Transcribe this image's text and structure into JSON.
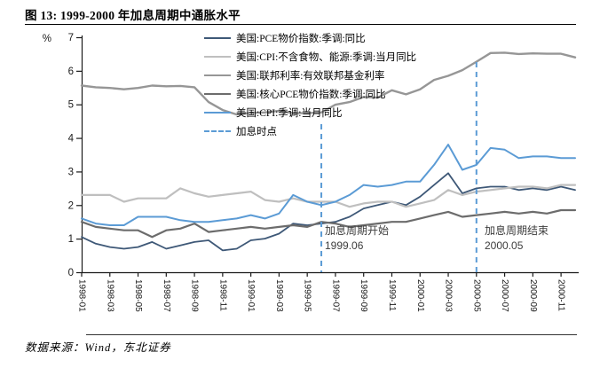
{
  "title": "图 13: 1999-2000 年加息周期中通胀水平",
  "footer": {
    "source_text": "数据来源：Wind，东北证券"
  },
  "chart_data": {
    "type": "line",
    "unit": "%",
    "ylim": [
      0,
      7
    ],
    "yticks": [
      0,
      1,
      2,
      3,
      4,
      5,
      6,
      7
    ],
    "grid": false,
    "legend_position": "top-center-overlay",
    "x_months": [
      "1998-01",
      "1998-02",
      "1998-03",
      "1998-04",
      "1998-05",
      "1998-06",
      "1998-07",
      "1998-08",
      "1998-09",
      "1998-10",
      "1998-11",
      "1998-12",
      "1999-01",
      "1999-02",
      "1999-03",
      "1999-04",
      "1999-05",
      "1999-06",
      "1999-07",
      "1999-08",
      "1999-09",
      "1999-10",
      "1999-11",
      "1999-12",
      "2000-01",
      "2000-02",
      "2000-03",
      "2000-04",
      "2000-05",
      "2000-06",
      "2000-07",
      "2000-08",
      "2000-09",
      "2000-10",
      "2000-11",
      "2000-12"
    ],
    "x_tick_labels": [
      "1998-01",
      "1998-03",
      "1998-05",
      "1998-07",
      "1998-09",
      "1998-11",
      "1999-01",
      "1999-03",
      "1999-05",
      "1999-07",
      "1999-09",
      "1999-11",
      "2000-01",
      "2000-03",
      "2000-05",
      "2000-07",
      "2000-09",
      "2000-11"
    ],
    "series": [
      {
        "id": "pce",
        "name": "美国:PCE物价指数:季调:同比",
        "color": "#3E5877",
        "width": 1.8,
        "values": [
          1.05,
          0.85,
          0.75,
          0.7,
          0.75,
          0.9,
          0.7,
          0.8,
          0.9,
          0.95,
          0.65,
          0.7,
          0.95,
          1.0,
          1.15,
          1.45,
          1.4,
          1.45,
          1.5,
          1.65,
          1.9,
          2.0,
          2.1,
          2.0,
          2.25,
          2.6,
          2.95,
          2.35,
          2.5,
          2.55,
          2.55,
          2.45,
          2.5,
          2.45,
          2.55,
          2.45
        ]
      },
      {
        "id": "core_cpi",
        "name": "美国:CPI:不含食物、能源:季调:当月同比",
        "color": "#BFBFBF",
        "width": 2.2,
        "values": [
          2.3,
          2.3,
          2.3,
          2.1,
          2.2,
          2.2,
          2.2,
          2.5,
          2.35,
          2.25,
          2.3,
          2.35,
          2.4,
          2.15,
          2.1,
          2.2,
          2.1,
          2.1,
          2.1,
          1.95,
          2.05,
          2.1,
          2.1,
          1.95,
          2.05,
          2.15,
          2.45,
          2.3,
          2.4,
          2.45,
          2.5,
          2.55,
          2.55,
          2.5,
          2.6,
          2.6
        ]
      },
      {
        "id": "fed_funds",
        "name": "美国:联邦利率:有效联邦基金利率",
        "color": "#969696",
        "width": 2.4,
        "values": [
          5.56,
          5.51,
          5.49,
          5.45,
          5.49,
          5.56,
          5.54,
          5.55,
          5.51,
          5.07,
          4.83,
          4.7,
          4.75,
          4.76,
          4.81,
          4.74,
          4.74,
          4.76,
          4.99,
          5.07,
          5.22,
          5.2,
          5.42,
          5.3,
          5.45,
          5.73,
          5.85,
          6.02,
          6.27,
          6.53,
          6.54,
          6.5,
          6.52,
          6.51,
          6.51,
          6.4
        ]
      },
      {
        "id": "core_pce",
        "name": "美国:核心PCE物价指数:季调:同比",
        "color": "#6C6C6C",
        "width": 2.2,
        "values": [
          1.5,
          1.35,
          1.3,
          1.25,
          1.25,
          1.05,
          1.25,
          1.3,
          1.45,
          1.2,
          1.25,
          1.3,
          1.35,
          1.3,
          1.35,
          1.4,
          1.35,
          1.5,
          1.45,
          1.35,
          1.4,
          1.45,
          1.5,
          1.5,
          1.6,
          1.7,
          1.8,
          1.65,
          1.7,
          1.75,
          1.8,
          1.75,
          1.8,
          1.75,
          1.85,
          1.85
        ]
      },
      {
        "id": "cpi",
        "name": "美国:CPI:季调:当月同比",
        "color": "#5B9BD5",
        "width": 2.0,
        "values": [
          1.6,
          1.45,
          1.4,
          1.4,
          1.65,
          1.65,
          1.65,
          1.55,
          1.5,
          1.5,
          1.55,
          1.6,
          1.7,
          1.6,
          1.75,
          2.3,
          2.1,
          2.0,
          2.1,
          2.3,
          2.6,
          2.55,
          2.6,
          2.7,
          2.7,
          3.2,
          3.8,
          3.05,
          3.2,
          3.7,
          3.65,
          3.4,
          3.45,
          3.45,
          3.4,
          3.4
        ]
      }
    ],
    "hike_legend": {
      "label": "加息时点",
      "color": "#5B9BD5"
    },
    "hike_lines": [
      {
        "month": "1999-06",
        "label_line1": "加息周期开始",
        "label_line2": "1999.06"
      },
      {
        "month": "2000-05",
        "label_line1": "加息周期结束",
        "label_line2": "2000.05"
      }
    ]
  }
}
